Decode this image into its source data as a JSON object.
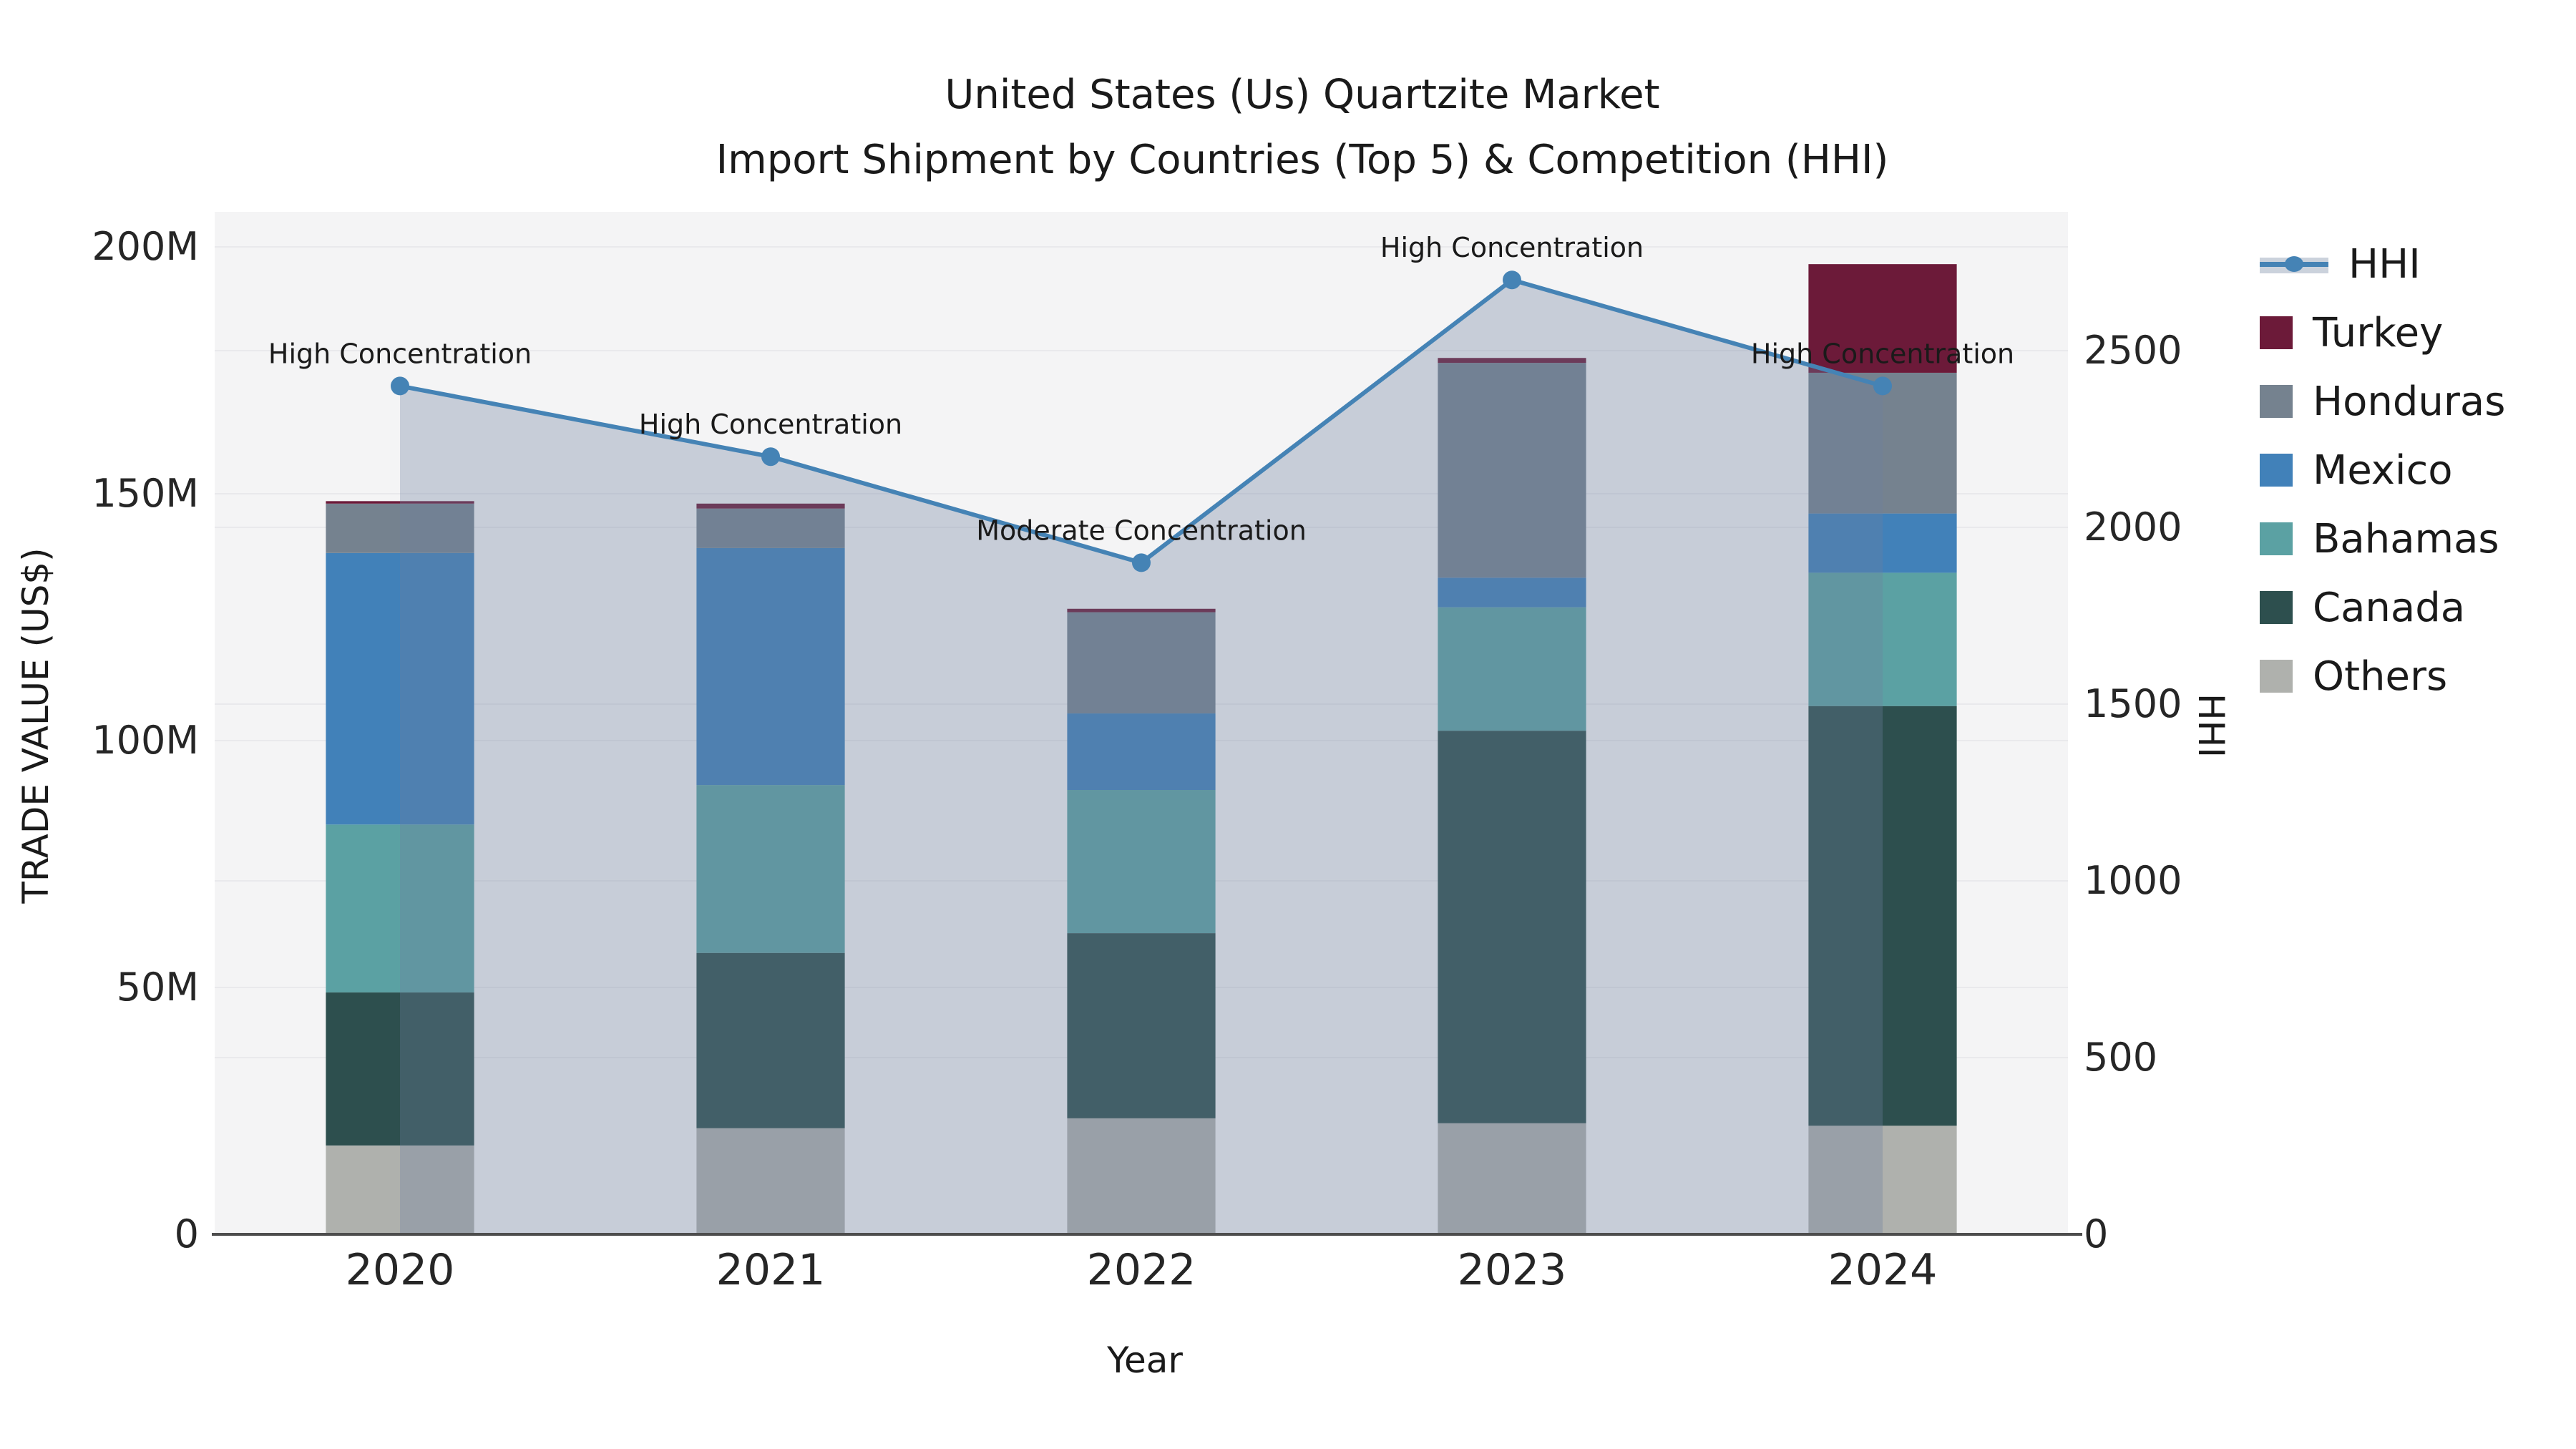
{
  "title": {
    "line1": "United States (Us) Quartzite Market",
    "line2": "Import Shipment by Countries (Top 5) & Competition (HHI)"
  },
  "axes": {
    "left_title": "TRADE VALUE (US$)",
    "bottom_title": "Year",
    "right_title": "HHI"
  },
  "legend": {
    "hhi_label": "HHI",
    "hhi_line_color": "#4583b5",
    "hhi_band_color": "#cbd2dc",
    "items": [
      {
        "label": "Turkey",
        "color": "#6c1a39"
      },
      {
        "label": "Honduras",
        "color": "#75828f"
      },
      {
        "label": "Mexico",
        "color": "#4181b9"
      },
      {
        "label": "Bahamas",
        "color": "#5ba1a3"
      },
      {
        "label": "Canada",
        "color": "#2d4f4e"
      },
      {
        "label": "Others",
        "color": "#afb1ad"
      }
    ]
  },
  "chart_data": {
    "type": "combo: stacked bar (left axis) + line with area fill (right axis)",
    "categories": [
      "2020",
      "2021",
      "2022",
      "2023",
      "2024"
    ],
    "bar_unit": "M US$ (trade value)",
    "bar_stack_order_bottom_to_top": [
      "Others",
      "Canada",
      "Bahamas",
      "Mexico",
      "Honduras",
      "Turkey"
    ],
    "bar_series": [
      {
        "name": "Others",
        "color": "#afb1ad",
        "values": [
          18,
          21.5,
          23.5,
          22.5,
          22
        ]
      },
      {
        "name": "Canada",
        "color": "#2d4f4e",
        "values": [
          31,
          35.5,
          37.5,
          79.5,
          85
        ]
      },
      {
        "name": "Bahamas",
        "color": "#5ba1a3",
        "values": [
          34,
          34,
          29,
          25,
          27
        ]
      },
      {
        "name": "Mexico",
        "color": "#4181b9",
        "values": [
          55,
          48,
          15.5,
          6,
          12
        ]
      },
      {
        "name": "Honduras",
        "color": "#75828f",
        "values": [
          10,
          8,
          20.5,
          43.5,
          28.5
        ]
      },
      {
        "name": "Turkey",
        "color": "#6c1a39",
        "values": [
          0.5,
          1,
          0.7,
          1,
          22
        ]
      }
    ],
    "bar_totals": [
      148.5,
      148,
      126.7,
      177.5,
      196.5
    ],
    "line_series": {
      "name": "HHI",
      "color": "#4583b5",
      "area_fill": "rgba(110,128,158,0.33)",
      "values": [
        2400,
        2200,
        1900,
        2700,
        2400
      ]
    },
    "annotations": [
      "High Concentration",
      "High Concentration",
      "Moderate Concentration",
      "High Concentration",
      "High Concentration"
    ],
    "y_left": {
      "label": "TRADE VALUE (US$)",
      "tick_labels": [
        "0",
        "50M",
        "100M",
        "150M",
        "200M"
      ],
      "tick_values": [
        0,
        50,
        100,
        150,
        200
      ],
      "max": 200
    },
    "y_right": {
      "label": "HHI",
      "tick_labels": [
        "0",
        "500",
        "1000",
        "1500",
        "2000",
        "2500"
      ],
      "tick_values": [
        0,
        500,
        1000,
        1500,
        2000,
        2500
      ],
      "max": 2500
    },
    "xlabel": "Year",
    "grid": "on",
    "legend_position": "right",
    "plot_background": "#f4f4f5",
    "gridline_color": "#e9e9ec"
  }
}
